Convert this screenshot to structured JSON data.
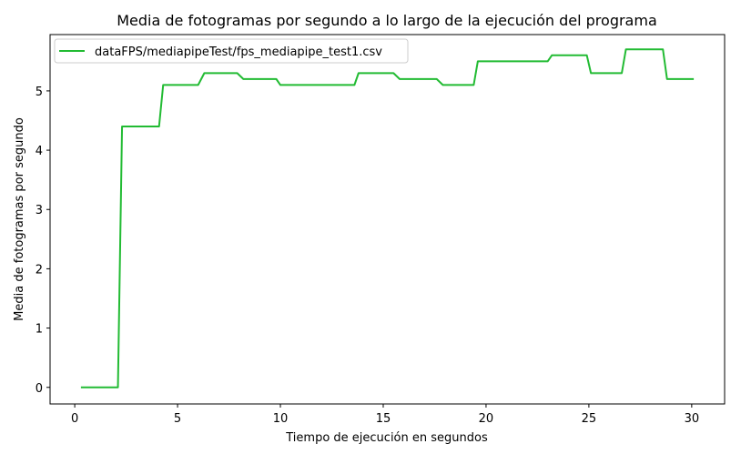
{
  "chart_data": {
    "type": "line",
    "title": "Media de fotogramas por segundo a lo largo de la ejecución del programa",
    "xlabel": "Tiempo de ejecución en segundos",
    "ylabel": "Media de fotogramas por segundo",
    "xlim": [
      -1.2,
      31.6
    ],
    "ylim": [
      -0.28,
      5.95
    ],
    "xticks": [
      0,
      5,
      10,
      15,
      20,
      25,
      30
    ],
    "yticks": [
      0,
      1,
      2,
      3,
      4,
      5
    ],
    "grid": false,
    "legend_position": "top-left",
    "series": [
      {
        "name": "dataFPS/mediapipeTest/fps_mediapipe_test1.csv",
        "color": "#22bb33",
        "x": [
          0.3,
          2.1,
          2.3,
          4.1,
          4.3,
          6.0,
          6.3,
          7.9,
          8.2,
          9.8,
          10.0,
          13.6,
          13.8,
          15.5,
          15.8,
          17.6,
          17.9,
          19.4,
          19.6,
          23.0,
          23.2,
          24.9,
          25.1,
          26.6,
          26.8,
          28.6,
          28.8,
          30.1
        ],
        "y": [
          0,
          0,
          4.4,
          4.4,
          5.1,
          5.1,
          5.3,
          5.3,
          5.2,
          5.2,
          5.1,
          5.1,
          5.3,
          5.3,
          5.2,
          5.2,
          5.1,
          5.1,
          5.5,
          5.5,
          5.6,
          5.6,
          5.3,
          5.3,
          5.7,
          5.7,
          5.2,
          5.2
        ]
      }
    ]
  }
}
